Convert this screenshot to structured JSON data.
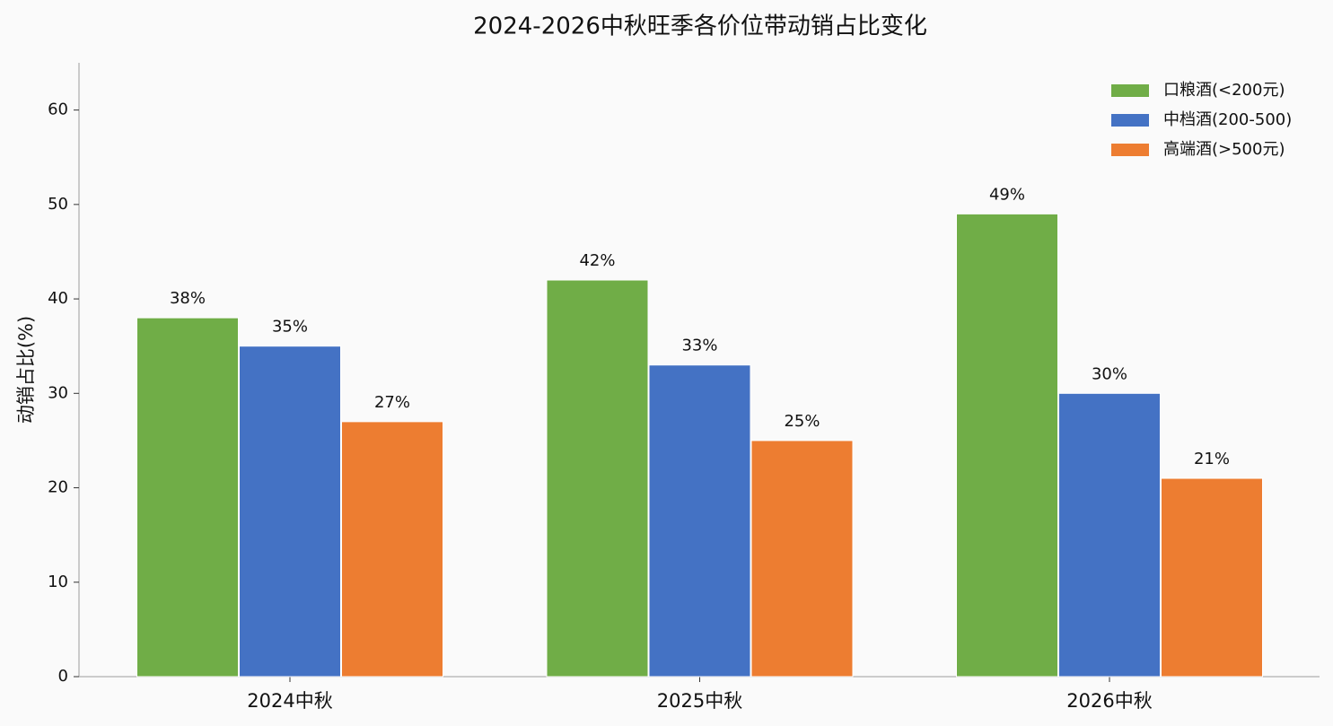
{
  "chart_data": {
    "type": "bar",
    "title": "2024-2026中秋旺季各价位带动销占比变化",
    "y_label": "动销占比(%)",
    "categories": [
      "2024中秋",
      "2025中秋",
      "2026中秋"
    ],
    "series": [
      {
        "name": "口粮酒(<200元)",
        "color": "#70ad47",
        "values": [
          38,
          42,
          49
        ],
        "value_labels": [
          "38%",
          "42%",
          "49%"
        ]
      },
      {
        "name": "中档酒(200-500)",
        "color": "#4472c4",
        "values": [
          35,
          33,
          30
        ],
        "value_labels": [
          "35%",
          "33%",
          "30%"
        ]
      },
      {
        "name": "高端酒(>500元)",
        "color": "#ed7d31",
        "values": [
          27,
          25,
          21
        ],
        "value_labels": [
          "27%",
          "25%",
          "21%"
        ]
      }
    ],
    "ylim": [
      0,
      65
    ],
    "yticks": [
      0,
      10,
      20,
      30,
      40,
      50,
      60
    ],
    "legend": "upper right"
  }
}
